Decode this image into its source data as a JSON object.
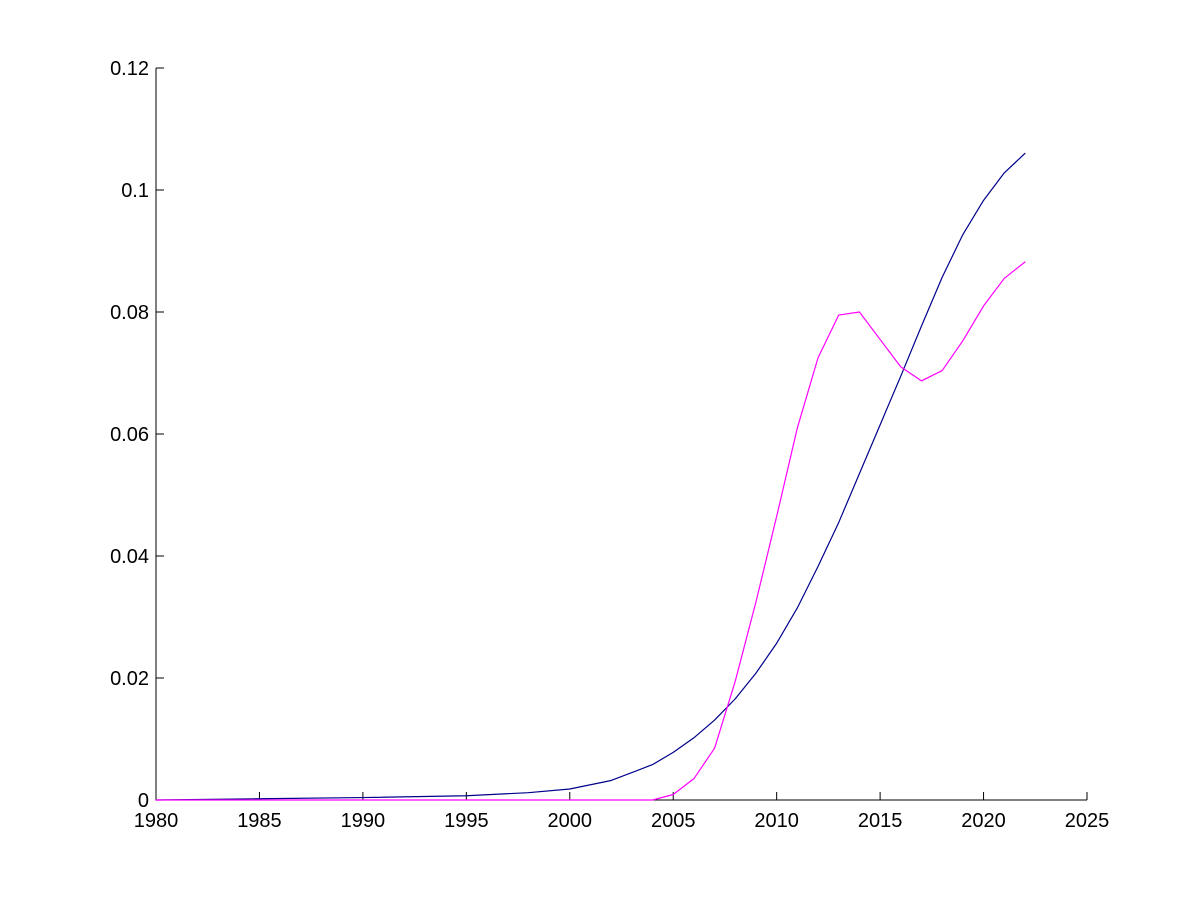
{
  "chart_data": {
    "type": "line",
    "title": "",
    "xlabel": "",
    "ylabel": "",
    "xlim": [
      1980,
      2025
    ],
    "ylim": [
      0,
      0.12
    ],
    "xticks": [
      1980,
      1985,
      1990,
      1995,
      2000,
      2005,
      2010,
      2015,
      2020,
      2025
    ],
    "xtick_labels": [
      "1980",
      "1985",
      "1990",
      "1995",
      "2000",
      "2005",
      "2010",
      "2015",
      "2020",
      "2025"
    ],
    "yticks": [
      0,
      0.02,
      0.04,
      0.06,
      0.08,
      0.1,
      0.12
    ],
    "ytick_labels": [
      "0",
      "0.02",
      "0.04",
      "0.06",
      "0.08",
      "0.1",
      "0.12"
    ],
    "grid": false,
    "series": [
      {
        "color": "#00008b",
        "x": [
          1980,
          1985,
          1990,
          1995,
          1998,
          2000,
          2002,
          2004,
          2005,
          2006,
          2007,
          2008,
          2009,
          2010,
          2011,
          2012,
          2013,
          2014,
          2015,
          2016,
          2017,
          2018,
          2019,
          2020,
          2021,
          2022
        ],
        "y": [
          0,
          0.0002,
          0.0004,
          0.0007,
          0.0012,
          0.0018,
          0.0032,
          0.0058,
          0.0078,
          0.0102,
          0.0131,
          0.0166,
          0.0208,
          0.0257,
          0.0315,
          0.0383,
          0.0455,
          0.0535,
          0.0615,
          0.0695,
          0.0777,
          0.0857,
          0.0927,
          0.0983,
          0.1028,
          0.106
        ]
      },
      {
        "color": "#ff00ff",
        "x": [
          1980,
          2004,
          2005,
          2006,
          2007,
          2008,
          2009,
          2010,
          2011,
          2012,
          2013,
          2014,
          2015,
          2016,
          2017,
          2018,
          2019,
          2020,
          2021,
          2022
        ],
        "y": [
          0,
          0,
          0.0009,
          0.0035,
          0.0085,
          0.0195,
          0.0325,
          0.0465,
          0.061,
          0.0725,
          0.0795,
          0.08,
          0.0755,
          0.071,
          0.0687,
          0.0704,
          0.0753,
          0.081,
          0.0855,
          0.0882
        ]
      }
    ]
  }
}
